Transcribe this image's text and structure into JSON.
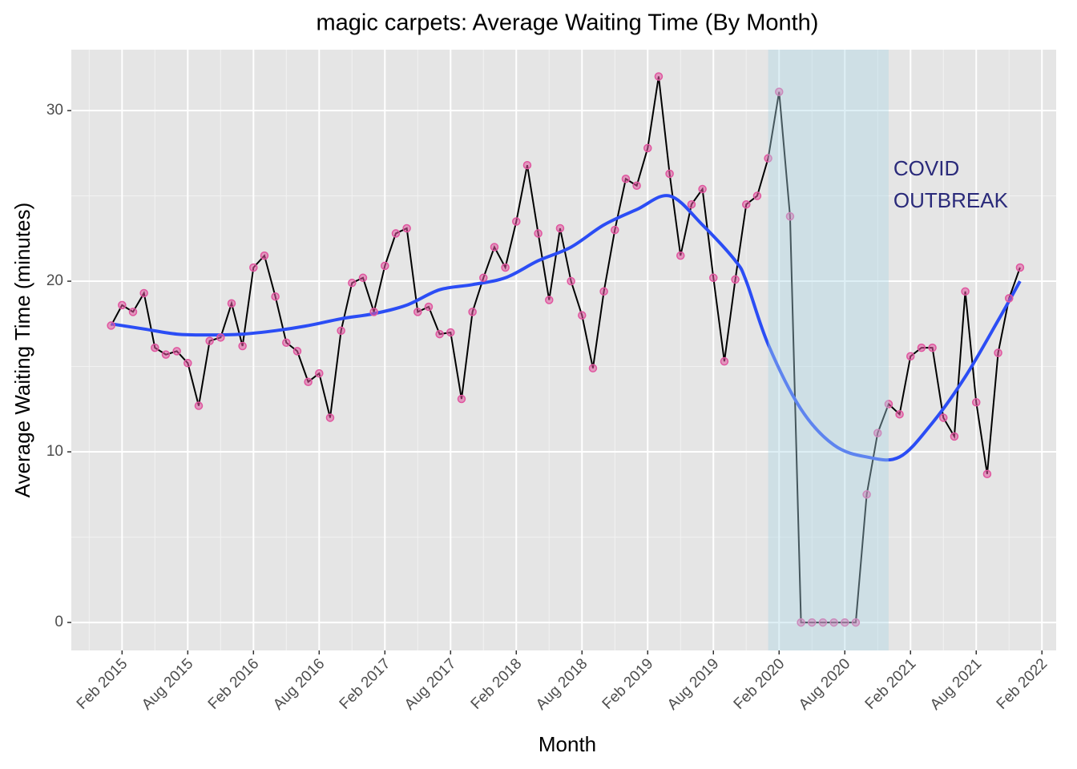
{
  "chart_data": {
    "type": "line",
    "title": "magic carpets: Average Waiting Time (By Month)",
    "x_label": "Month",
    "y_label": "Average Waiting Time (minutes)",
    "x": [
      "2015-01",
      "2015-02",
      "2015-03",
      "2015-04",
      "2015-05",
      "2015-06",
      "2015-07",
      "2015-08",
      "2015-09",
      "2015-10",
      "2015-11",
      "2015-12",
      "2016-01",
      "2016-02",
      "2016-03",
      "2016-04",
      "2016-05",
      "2016-06",
      "2016-07",
      "2016-08",
      "2016-09",
      "2016-10",
      "2016-11",
      "2016-12",
      "2017-01",
      "2017-02",
      "2017-03",
      "2017-04",
      "2017-05",
      "2017-06",
      "2017-07",
      "2017-08",
      "2017-09",
      "2017-10",
      "2017-11",
      "2017-12",
      "2018-01",
      "2018-02",
      "2018-03",
      "2018-04",
      "2018-05",
      "2018-06",
      "2018-07",
      "2018-08",
      "2018-09",
      "2018-10",
      "2018-11",
      "2018-12",
      "2019-01",
      "2019-02",
      "2019-03",
      "2019-04",
      "2019-05",
      "2019-06",
      "2019-07",
      "2019-08",
      "2019-09",
      "2019-10",
      "2019-11",
      "2019-12",
      "2020-01",
      "2020-02",
      "2020-03",
      "2020-04",
      "2020-05",
      "2020-06",
      "2020-07",
      "2020-08",
      "2020-09",
      "2020-10",
      "2020-11",
      "2020-12",
      "2021-01",
      "2021-02",
      "2021-03",
      "2021-04",
      "2021-05",
      "2021-06",
      "2021-07",
      "2021-08",
      "2021-09",
      "2021-10",
      "2021-11",
      "2021-12"
    ],
    "values": [
      17.4,
      18.6,
      18.2,
      19.3,
      16.1,
      15.7,
      15.9,
      15.2,
      12.7,
      16.5,
      16.7,
      18.7,
      16.2,
      20.8,
      21.5,
      19.1,
      16.4,
      15.9,
      14.1,
      14.6,
      12.0,
      17.1,
      19.9,
      20.2,
      18.2,
      20.9,
      22.8,
      23.1,
      18.2,
      18.5,
      16.9,
      17.0,
      13.1,
      18.2,
      20.2,
      22.0,
      20.8,
      23.5,
      26.8,
      22.8,
      18.9,
      23.1,
      20.0,
      18.0,
      14.9,
      19.4,
      23.0,
      26.0,
      25.6,
      27.8,
      32.0,
      26.3,
      21.5,
      24.5,
      25.4,
      20.2,
      15.3,
      20.1,
      24.5,
      25.0,
      27.2,
      31.1,
      23.8,
      0,
      0,
      0,
      0,
      0,
      0,
      7.5,
      11.1,
      12.8,
      12.2,
      15.6,
      16.1,
      16.1,
      12.0,
      10.9,
      19.4,
      12.9,
      8.7,
      15.8,
      19.0,
      20.8
    ],
    "line_color": "#000000",
    "point_color": "#e0559f",
    "smooth": {
      "color": "#2b4df5",
      "x": [
        "2015-01",
        "2015-04",
        "2015-07",
        "2015-10",
        "2016-01",
        "2016-04",
        "2016-07",
        "2016-10",
        "2017-01",
        "2017-04",
        "2017-07",
        "2017-10",
        "2018-01",
        "2018-04",
        "2018-07",
        "2018-10",
        "2019-01",
        "2019-04",
        "2019-07",
        "2019-10",
        "2019-11",
        "2020-01",
        "2020-04",
        "2020-07",
        "2020-10",
        "2021-01",
        "2021-04",
        "2021-07",
        "2021-10",
        "2021-12"
      ],
      "values": [
        17.5,
        17.2,
        16.9,
        16.85,
        16.9,
        17.1,
        17.4,
        17.8,
        18.1,
        18.6,
        19.5,
        19.8,
        20.2,
        21.2,
        22.0,
        23.3,
        24.2,
        25.0,
        23.3,
        21.2,
        20.0,
        16.3,
        12.5,
        10.4,
        9.7,
        9.7,
        11.7,
        14.4,
        17.7,
        20.0
      ]
    },
    "highlight": {
      "start": "2020-01",
      "end": "2020-12",
      "color": "#add8e6",
      "lines": [
        "COVID",
        "OUTBREAK"
      ]
    },
    "xlim": [
      "2014-09-12",
      "2022-03-10"
    ],
    "xticks": [
      {
        "value": "2015-02",
        "label": "Feb 2015"
      },
      {
        "value": "2015-08",
        "label": "Aug 2015"
      },
      {
        "value": "2016-02",
        "label": "Feb 2016"
      },
      {
        "value": "2016-08",
        "label": "Aug 2016"
      },
      {
        "value": "2017-02",
        "label": "Feb 2017"
      },
      {
        "value": "2017-08",
        "label": "Aug 2017"
      },
      {
        "value": "2018-02",
        "label": "Feb 2018"
      },
      {
        "value": "2018-08",
        "label": "Aug 2018"
      },
      {
        "value": "2019-02",
        "label": "Feb 2019"
      },
      {
        "value": "2019-08",
        "label": "Aug 2019"
      },
      {
        "value": "2020-02",
        "label": "Feb 2020"
      },
      {
        "value": "2020-08",
        "label": "Aug 2020"
      },
      {
        "value": "2021-02",
        "label": "Feb 2021"
      },
      {
        "value": "2021-08",
        "label": "Aug 2021"
      },
      {
        "value": "2022-02",
        "label": "Feb 2022"
      }
    ],
    "ylim": [
      -1.64,
      33.57
    ],
    "yticks": [
      0,
      10,
      20,
      30
    ],
    "grid": true
  }
}
